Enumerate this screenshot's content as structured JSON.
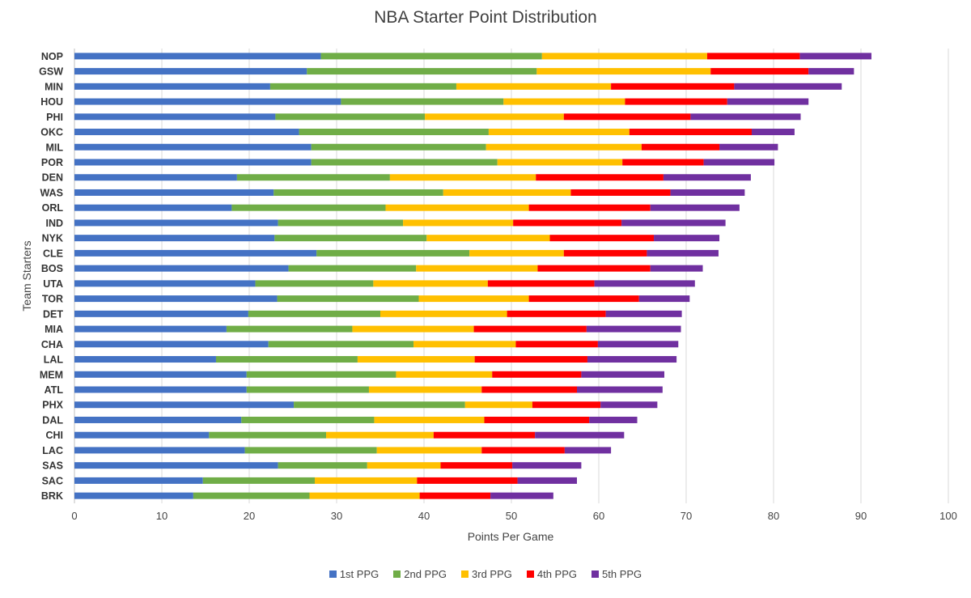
{
  "chart_data": {
    "type": "bar",
    "orientation": "horizontal",
    "stacked": true,
    "title": "NBA Starter Point Distribution",
    "xlabel": "Points Per Game",
    "ylabel": "Team Starters",
    "xlim": [
      0,
      100
    ],
    "xticks": [
      0,
      10,
      20,
      30,
      40,
      50,
      60,
      70,
      80,
      90,
      100
    ],
    "grid": "vertical",
    "legend_position": "bottom",
    "categories": [
      "NOP",
      "GSW",
      "MIN",
      "HOU",
      "PHI",
      "OKC",
      "MIL",
      "POR",
      "DEN",
      "WAS",
      "ORL",
      "IND",
      "NYK",
      "CLE",
      "BOS",
      "UTA",
      "TOR",
      "DET",
      "MIA",
      "CHA",
      "LAL",
      "MEM",
      "ATL",
      "PHX",
      "DAL",
      "CHI",
      "LAC",
      "SAS",
      "SAC",
      "BRK"
    ],
    "series": [
      {
        "name": "1st PPG",
        "color": "#4472c4",
        "values": [
          28.2,
          26.6,
          22.4,
          30.5,
          23.0,
          25.7,
          27.1,
          27.1,
          18.6,
          22.8,
          18.0,
          23.3,
          22.9,
          27.7,
          24.5,
          20.7,
          23.2,
          19.9,
          17.4,
          22.2,
          16.2,
          19.7,
          19.7,
          25.1,
          19.1,
          15.4,
          19.5,
          23.3,
          14.7,
          13.6
        ]
      },
      {
        "name": "2nd PPG",
        "color": "#70ad47",
        "values": [
          25.3,
          26.3,
          21.3,
          18.6,
          17.1,
          21.7,
          20.0,
          21.3,
          17.5,
          19.4,
          17.6,
          14.3,
          17.4,
          17.5,
          14.6,
          13.5,
          16.2,
          15.1,
          14.4,
          16.6,
          16.2,
          17.1,
          14.0,
          19.6,
          15.2,
          13.4,
          15.1,
          10.2,
          12.8,
          13.3
        ]
      },
      {
        "name": "3rd PPG",
        "color": "#ffc000",
        "values": [
          18.9,
          19.9,
          17.7,
          13.9,
          15.9,
          16.1,
          17.8,
          14.3,
          16.7,
          14.6,
          16.4,
          12.6,
          14.1,
          10.8,
          13.9,
          13.1,
          12.6,
          14.5,
          13.9,
          11.7,
          13.4,
          11.0,
          12.9,
          7.7,
          12.6,
          12.3,
          12.0,
          8.4,
          11.7,
          12.6
        ]
      },
      {
        "name": "4th PPG",
        "color": "#ff0000",
        "values": [
          10.6,
          11.2,
          14.1,
          11.7,
          14.5,
          14.0,
          8.9,
          9.3,
          14.6,
          11.4,
          13.9,
          12.4,
          11.9,
          9.5,
          12.9,
          12.2,
          12.6,
          11.3,
          12.9,
          9.4,
          12.9,
          10.2,
          10.9,
          7.8,
          12.0,
          11.6,
          9.5,
          8.2,
          11.5,
          8.1
        ]
      },
      {
        "name": "5th PPG",
        "color": "#7030a0",
        "values": [
          8.2,
          5.2,
          12.3,
          9.3,
          12.6,
          4.9,
          6.7,
          8.1,
          10.0,
          8.5,
          10.2,
          11.9,
          7.5,
          8.2,
          6.0,
          11.5,
          5.8,
          8.7,
          10.8,
          9.2,
          10.2,
          9.5,
          9.8,
          6.5,
          5.5,
          10.2,
          5.3,
          7.9,
          6.8,
          7.2
        ]
      }
    ]
  }
}
